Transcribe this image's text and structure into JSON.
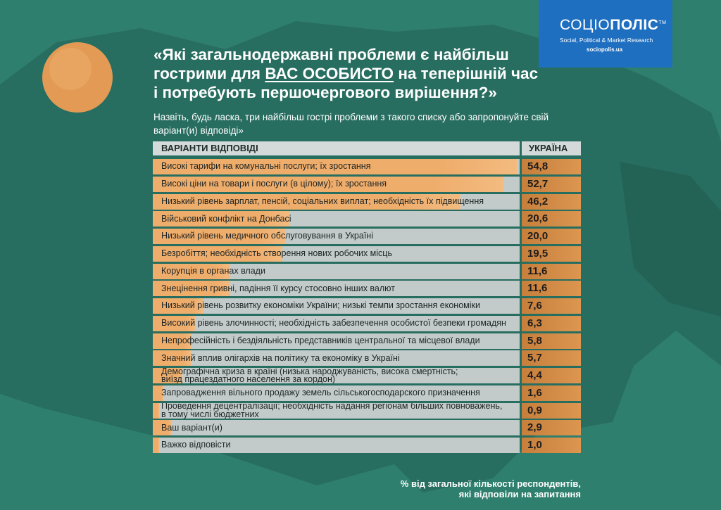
{
  "chart_data": {
    "type": "bar",
    "orientation": "horizontal",
    "title": {
      "line1": "«Які загальнодержавні проблеми є найбільш",
      "line2_before": "гострими для",
      "line2_emphasis": "ВАС ОСОБИСТО",
      "line2_after": "на теперішній час",
      "line3": "і потребують першочергового вирішення?»"
    },
    "subtitle": "Назвіть, будь ласка, три найбільш гострі проблеми з такого списку або запропонуйте свій варіант(и) відповіді»",
    "category_header": "ВАРІАНТИ ВІДПОВІДІ",
    "value_header": "УКРАЇНА",
    "categories": [
      "Високі тарифи на комунальні послуги; їх зростання",
      "Високі ціни на товари і послуги (в цілому);  їх зростання",
      "Низький рівень зарплат, пенсій, соціальних виплат; необхідність їх підвищення",
      "Військовий конфлікт на Донбасі",
      "Низький рівень медичного обслуговування в Україні",
      "Безробіття; необхідність створення нових робочих місць",
      "Корупція в органах влади",
      "Знецінення гривні, падіння її курсу стосовно інших валют",
      "Низький рівень розвитку економіки України; низькі темпи зростання економіки",
      "Високий рівень злочинності; необхідність забезпечення особистої безпеки громадян",
      "Непрофесійність і бездіяльність представників центральної та місцевої влади",
      "Значний вплив олігархів на політику та економіку в Україні",
      "Демографічна криза в країні (низька народжуваність, висока смертність;\nвиїзд працездатного населення за кордон)",
      "Запровадження вільного продажу земель сільськогосподарского призначення",
      "Проведення децентралізації; необхідність надання регіонам більших повноважень,\nв тому числі бюджетних",
      "Ваш варіант(и)",
      "Важко відповісти"
    ],
    "values": [
      54.8,
      52.7,
      46.2,
      20.6,
      20.0,
      19.5,
      11.6,
      11.6,
      7.6,
      6.3,
      5.8,
      5.7,
      4.4,
      1.6,
      0.9,
      2.9,
      1.0
    ],
    "value_labels": [
      "54,8",
      "52,7",
      "46,2",
      "20,6",
      "20,0",
      "19,5",
      "11,6",
      "11,6",
      "7,6",
      "6,3",
      "5,8",
      "5,7",
      "4,4",
      "1,6",
      "0,9",
      "2,9",
      "1,0"
    ],
    "color": "#efad6c",
    "footnote": [
      "% від загальної кількості респондентів,",
      "які відповіли на запитання"
    ],
    "logo": {
      "name_light": "СОЦІО",
      "name_bold": "ПОЛІС",
      "tm": "TM",
      "tagline": "Social, Political & Market Research",
      "site": "sociopolis.ua"
    }
  }
}
